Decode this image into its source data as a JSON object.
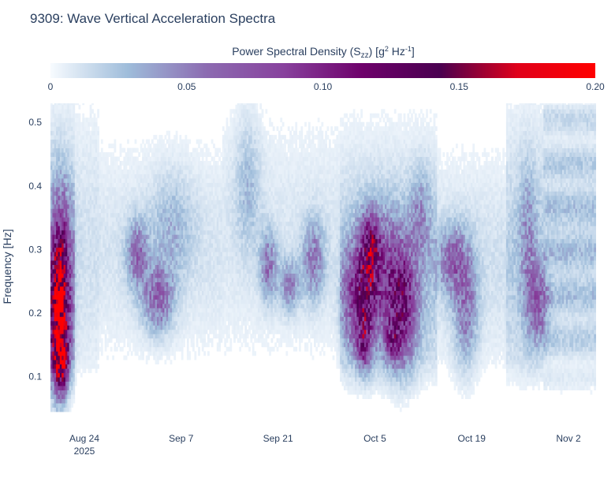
{
  "chart_data": {
    "type": "heatmap",
    "title": "9309: Wave Vertical Acceleration Spectra",
    "colorbar": {
      "title_main": "Power Spectral Density (S",
      "title_sub": "zz",
      "title_rest": ") [g",
      "title_sup1": "2",
      "title_mid": " Hz",
      "title_sup2": "-1",
      "title_end": "]",
      "range": [
        0,
        0.2
      ],
      "ticks": [
        {
          "value": 0,
          "label": "0"
        },
        {
          "value": 0.05,
          "label": "0.05"
        },
        {
          "value": 0.1,
          "label": "0.10"
        },
        {
          "value": 0.15,
          "label": "0.15"
        },
        {
          "value": 0.2,
          "label": "0.20"
        }
      ],
      "colorscale": [
        "#f7fbff",
        "#9ebcda",
        "#8c6bb1",
        "#88419d",
        "#6e016b",
        "#4a0050",
        "#e0001a",
        "#ff0000"
      ]
    },
    "yaxis": {
      "title": "Frequency [Hz]",
      "range": [
        0.045,
        0.53
      ],
      "ticks": [
        {
          "value": 0.1,
          "label": "0.1"
        },
        {
          "value": 0.2,
          "label": "0.2"
        },
        {
          "value": 0.3,
          "label": "0.3"
        },
        {
          "value": 0.4,
          "label": "0.4"
        },
        {
          "value": 0.5,
          "label": "0.5"
        }
      ]
    },
    "xaxis": {
      "range_days": [
        -4.9,
        74.1
      ],
      "ticks": [
        {
          "day": 0,
          "label": "Aug 24",
          "sublabel": "2025"
        },
        {
          "day": 14,
          "label": "Sep 7",
          "sublabel": ""
        },
        {
          "day": 28,
          "label": "Sep 21",
          "sublabel": ""
        },
        {
          "day": 42,
          "label": "Oct 5",
          "sublabel": ""
        },
        {
          "day": 56,
          "label": "Oct 19",
          "sublabel": ""
        },
        {
          "day": 70,
          "label": "Nov 2",
          "sublabel": ""
        }
      ]
    },
    "data_extent": {
      "day_start": -4.9,
      "day_end": 73.8
    },
    "energy_events": [
      {
        "day": -3.8,
        "freq": 0.18,
        "width_days": 1.3,
        "width_freq": 0.1,
        "value": 0.12
      },
      {
        "day": -3.6,
        "freq": 0.26,
        "width_days": 1.4,
        "width_freq": 0.12,
        "value": 0.085
      },
      {
        "day": -3.5,
        "freq": 0.12,
        "width_days": 0.9,
        "width_freq": 0.04,
        "value": 0.1
      },
      {
        "day": 7.5,
        "freq": 0.29,
        "width_days": 1.5,
        "width_freq": 0.05,
        "value": 0.05
      },
      {
        "day": 10.5,
        "freq": 0.22,
        "width_days": 2.2,
        "width_freq": 0.05,
        "value": 0.055
      },
      {
        "day": 12.5,
        "freq": 0.33,
        "width_days": 3.0,
        "width_freq": 0.08,
        "value": 0.022
      },
      {
        "day": 23.5,
        "freq": 0.4,
        "width_days": 1.8,
        "width_freq": 0.1,
        "value": 0.02
      },
      {
        "day": 26.5,
        "freq": 0.27,
        "width_days": 1.2,
        "width_freq": 0.05,
        "value": 0.05
      },
      {
        "day": 29.5,
        "freq": 0.24,
        "width_days": 1.4,
        "width_freq": 0.04,
        "value": 0.04
      },
      {
        "day": 33.0,
        "freq": 0.28,
        "width_days": 1.6,
        "width_freq": 0.06,
        "value": 0.045
      },
      {
        "day": 38.5,
        "freq": 0.22,
        "width_days": 1.5,
        "width_freq": 0.08,
        "value": 0.05
      },
      {
        "day": 40.5,
        "freq": 0.24,
        "width_days": 1.5,
        "width_freq": 0.09,
        "value": 0.085
      },
      {
        "day": 41.5,
        "freq": 0.3,
        "width_days": 1.2,
        "width_freq": 0.05,
        "value": 0.07
      },
      {
        "day": 40.3,
        "freq": 0.15,
        "width_days": 1.0,
        "width_freq": 0.04,
        "value": 0.07
      },
      {
        "day": 43.5,
        "freq": 0.25,
        "width_days": 2.5,
        "width_freq": 0.1,
        "value": 0.055
      },
      {
        "day": 46.0,
        "freq": 0.21,
        "width_days": 2.0,
        "width_freq": 0.09,
        "value": 0.08
      },
      {
        "day": 44.5,
        "freq": 0.15,
        "width_days": 1.2,
        "width_freq": 0.03,
        "value": 0.05
      },
      {
        "day": 48.5,
        "freq": 0.35,
        "width_days": 1.5,
        "width_freq": 0.07,
        "value": 0.03
      },
      {
        "day": 53.0,
        "freq": 0.28,
        "width_days": 2.0,
        "width_freq": 0.05,
        "value": 0.05
      },
      {
        "day": 55.0,
        "freq": 0.21,
        "width_days": 1.7,
        "width_freq": 0.09,
        "value": 0.045
      },
      {
        "day": 64.0,
        "freq": 0.3,
        "width_days": 1.2,
        "width_freq": 0.12,
        "value": 0.03
      },
      {
        "day": 65.5,
        "freq": 0.21,
        "width_days": 1.4,
        "width_freq": 0.06,
        "value": 0.05
      }
    ]
  }
}
